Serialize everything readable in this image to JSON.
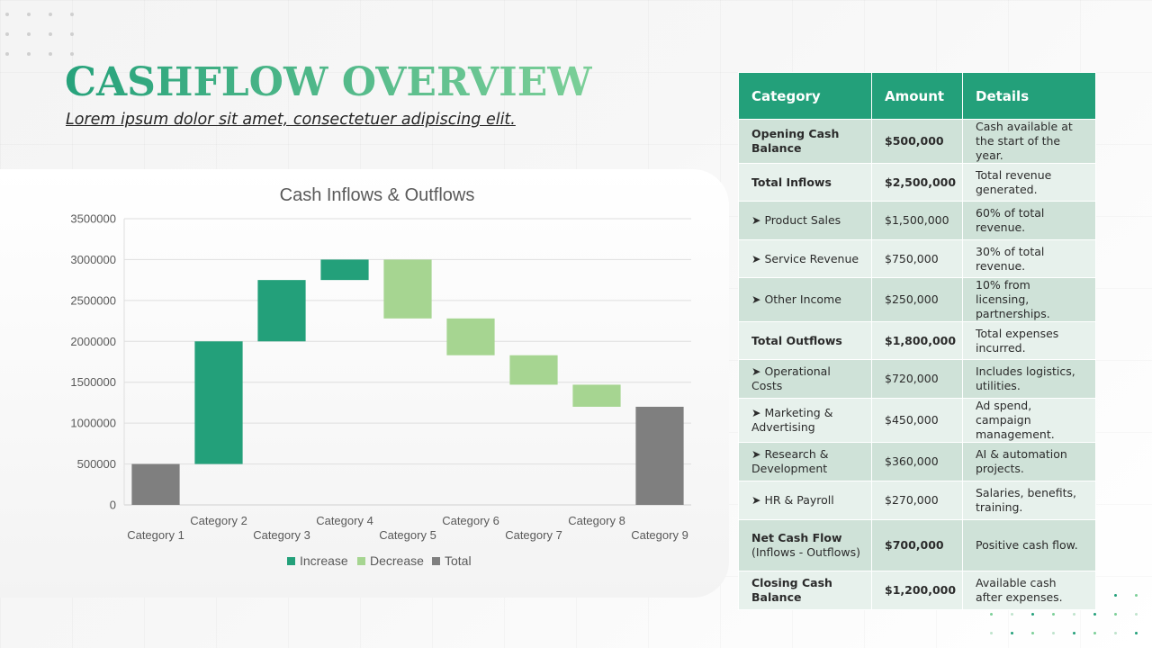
{
  "page": {
    "title": "CASHFLOW OVERVIEW",
    "subtitle": "Lorem ipsum dolor sit amet, consectetuer adipiscing elit."
  },
  "chart_data": {
    "type": "bar",
    "subtype": "waterfall",
    "title": "Cash Inflows & Outflows",
    "xlabel": "",
    "ylabel": "",
    "ylim": [
      0,
      3500000
    ],
    "yticks": [
      "0",
      "500000",
      "1000000",
      "1500000",
      "2000000",
      "2500000",
      "3000000",
      "3500000"
    ],
    "grid": true,
    "legend_position": "bottom",
    "categories": [
      "Category 1",
      "Category 2",
      "Category 3",
      "Category 4",
      "Category 5",
      "Category 6",
      "Category 7",
      "Category 8",
      "Category 9"
    ],
    "bars": [
      {
        "kind": "total",
        "start": 0,
        "end": 500000
      },
      {
        "kind": "increase",
        "start": 500000,
        "end": 2000000
      },
      {
        "kind": "increase",
        "start": 2000000,
        "end": 2750000
      },
      {
        "kind": "increase",
        "start": 2750000,
        "end": 3000000
      },
      {
        "kind": "decrease",
        "start": 3000000,
        "end": 2280000
      },
      {
        "kind": "decrease",
        "start": 2280000,
        "end": 1830000
      },
      {
        "kind": "decrease",
        "start": 1830000,
        "end": 1470000
      },
      {
        "kind": "decrease",
        "start": 1470000,
        "end": 1200000
      },
      {
        "kind": "total",
        "start": 0,
        "end": 1200000
      }
    ],
    "legend": [
      {
        "kind": "increase",
        "label": "Increase"
      },
      {
        "kind": "decrease",
        "label": "Decrease"
      },
      {
        "kind": "total",
        "label": "Total"
      }
    ],
    "colors": {
      "increase": "#23a07a",
      "decrease": "#a6d591",
      "total": "#7f7f7f"
    }
  },
  "table": {
    "headers": [
      "Category",
      "Amount",
      "Details"
    ],
    "rows": [
      {
        "category": "Opening Cash Balance",
        "amount": "$500,000",
        "details": "Cash available at the start of the year.",
        "bold": true
      },
      {
        "category": "Total Inflows",
        "amount": "$2,500,000",
        "details": "Total revenue generated.",
        "bold": true
      },
      {
        "category": "➤ Product Sales",
        "amount": "$1,500,000",
        "details": "60% of total revenue.",
        "bold": false
      },
      {
        "category": "➤ Service Revenue",
        "amount": "$750,000",
        "details": "30% of total revenue.",
        "bold": false
      },
      {
        "category": "➤ Other Income",
        "amount": "$250,000",
        "details": "10% from licensing, partnerships.",
        "bold": false
      },
      {
        "category": "Total Outflows",
        "amount": "$1,800,000",
        "details": "Total expenses incurred.",
        "bold": true
      },
      {
        "category": "➤ Operational Costs",
        "amount": "$720,000",
        "details": "Includes logistics, utilities.",
        "bold": false
      },
      {
        "category": "➤ Marketing & Advertising",
        "amount": "$450,000",
        "details": "Ad spend, campaign management.",
        "bold": false
      },
      {
        "category": "➤ Research & Development",
        "amount": "$360,000",
        "details": "AI & automation projects.",
        "bold": false
      },
      {
        "category": "➤ HR & Payroll",
        "amount": "$270,000",
        "details": "Salaries, benefits, training.",
        "bold": false
      },
      {
        "category": "Net Cash Flow",
        "category_note": "(Inflows - Outflows)",
        "amount": "$700,000",
        "details": "Positive cash flow.",
        "bold": true
      },
      {
        "category": "Closing Cash Balance",
        "amount": "$1,200,000",
        "details": "Available cash after expenses.",
        "bold": true
      }
    ]
  }
}
